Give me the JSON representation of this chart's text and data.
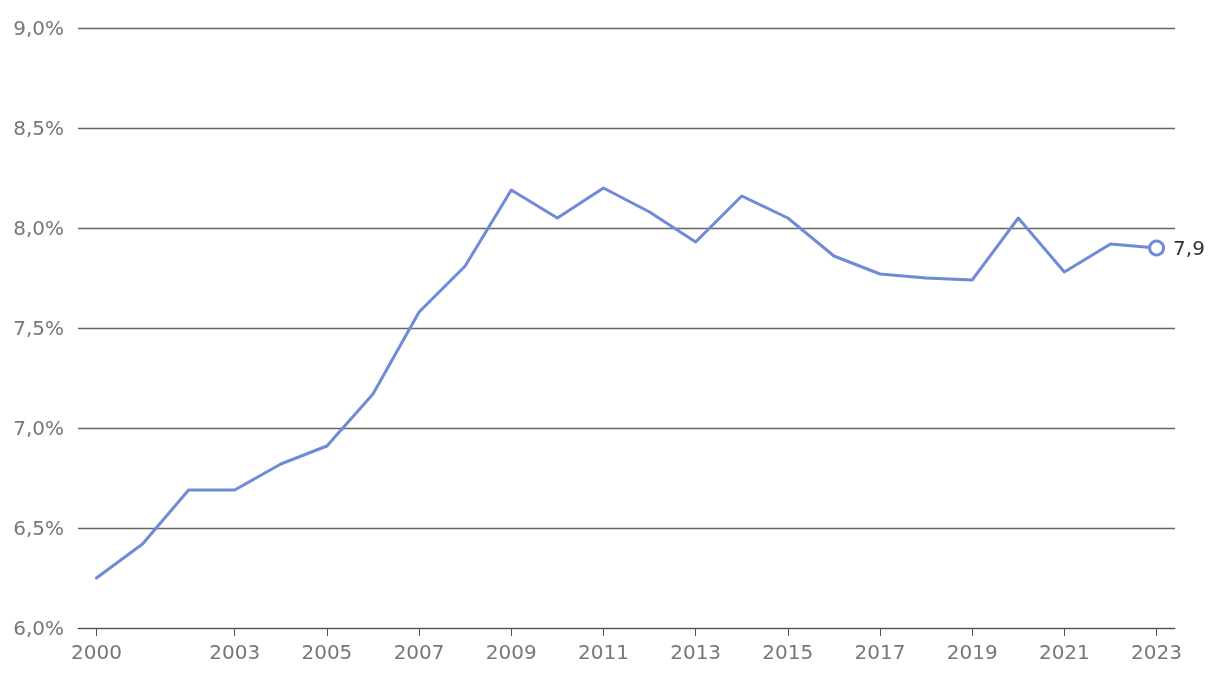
{
  "chart_data": {
    "type": "line",
    "x": [
      2000,
      2001,
      2002,
      2003,
      2004,
      2005,
      2006,
      2007,
      2008,
      2009,
      2010,
      2011,
      2012,
      2013,
      2014,
      2015,
      2016,
      2017,
      2018,
      2019,
      2020,
      2021,
      2022,
      2023
    ],
    "series": [
      {
        "color": "#6f8ad6",
        "values": [
          6.25,
          6.42,
          6.69,
          6.69,
          6.82,
          6.91,
          7.17,
          7.58,
          7.81,
          8.19,
          8.05,
          8.2,
          8.08,
          7.93,
          8.16,
          8.05,
          7.86,
          7.77,
          7.75,
          7.74,
          8.05,
          7.78,
          7.92,
          7.9
        ],
        "value_labels": [
          null,
          null,
          null,
          null,
          null,
          null,
          null,
          null,
          null,
          null,
          null,
          null,
          null,
          null,
          null,
          null,
          null,
          null,
          null,
          null,
          null,
          null,
          null,
          "7,9"
        ]
      }
    ],
    "xlim": [
      1999.6,
      2023.4
    ],
    "xticks": [
      2000,
      2003,
      2005,
      2007,
      2009,
      2011,
      2013,
      2015,
      2017,
      2019,
      2021,
      2023
    ],
    "ylim": [
      6,
      9
    ],
    "yticks": [
      {
        "value": 6,
        "label": "6,0%"
      },
      {
        "value": 6.5,
        "label": "6,5%"
      },
      {
        "value": 7,
        "label": "7,0%"
      },
      {
        "value": 7.5,
        "label": "7,5%"
      },
      {
        "value": 8,
        "label": "8,0%"
      },
      {
        "value": 8.5,
        "label": "8,5%"
      },
      {
        "value": 9,
        "label": "9,0%"
      }
    ],
    "grid": "y",
    "marker": "none",
    "line_style": "solid"
  }
}
